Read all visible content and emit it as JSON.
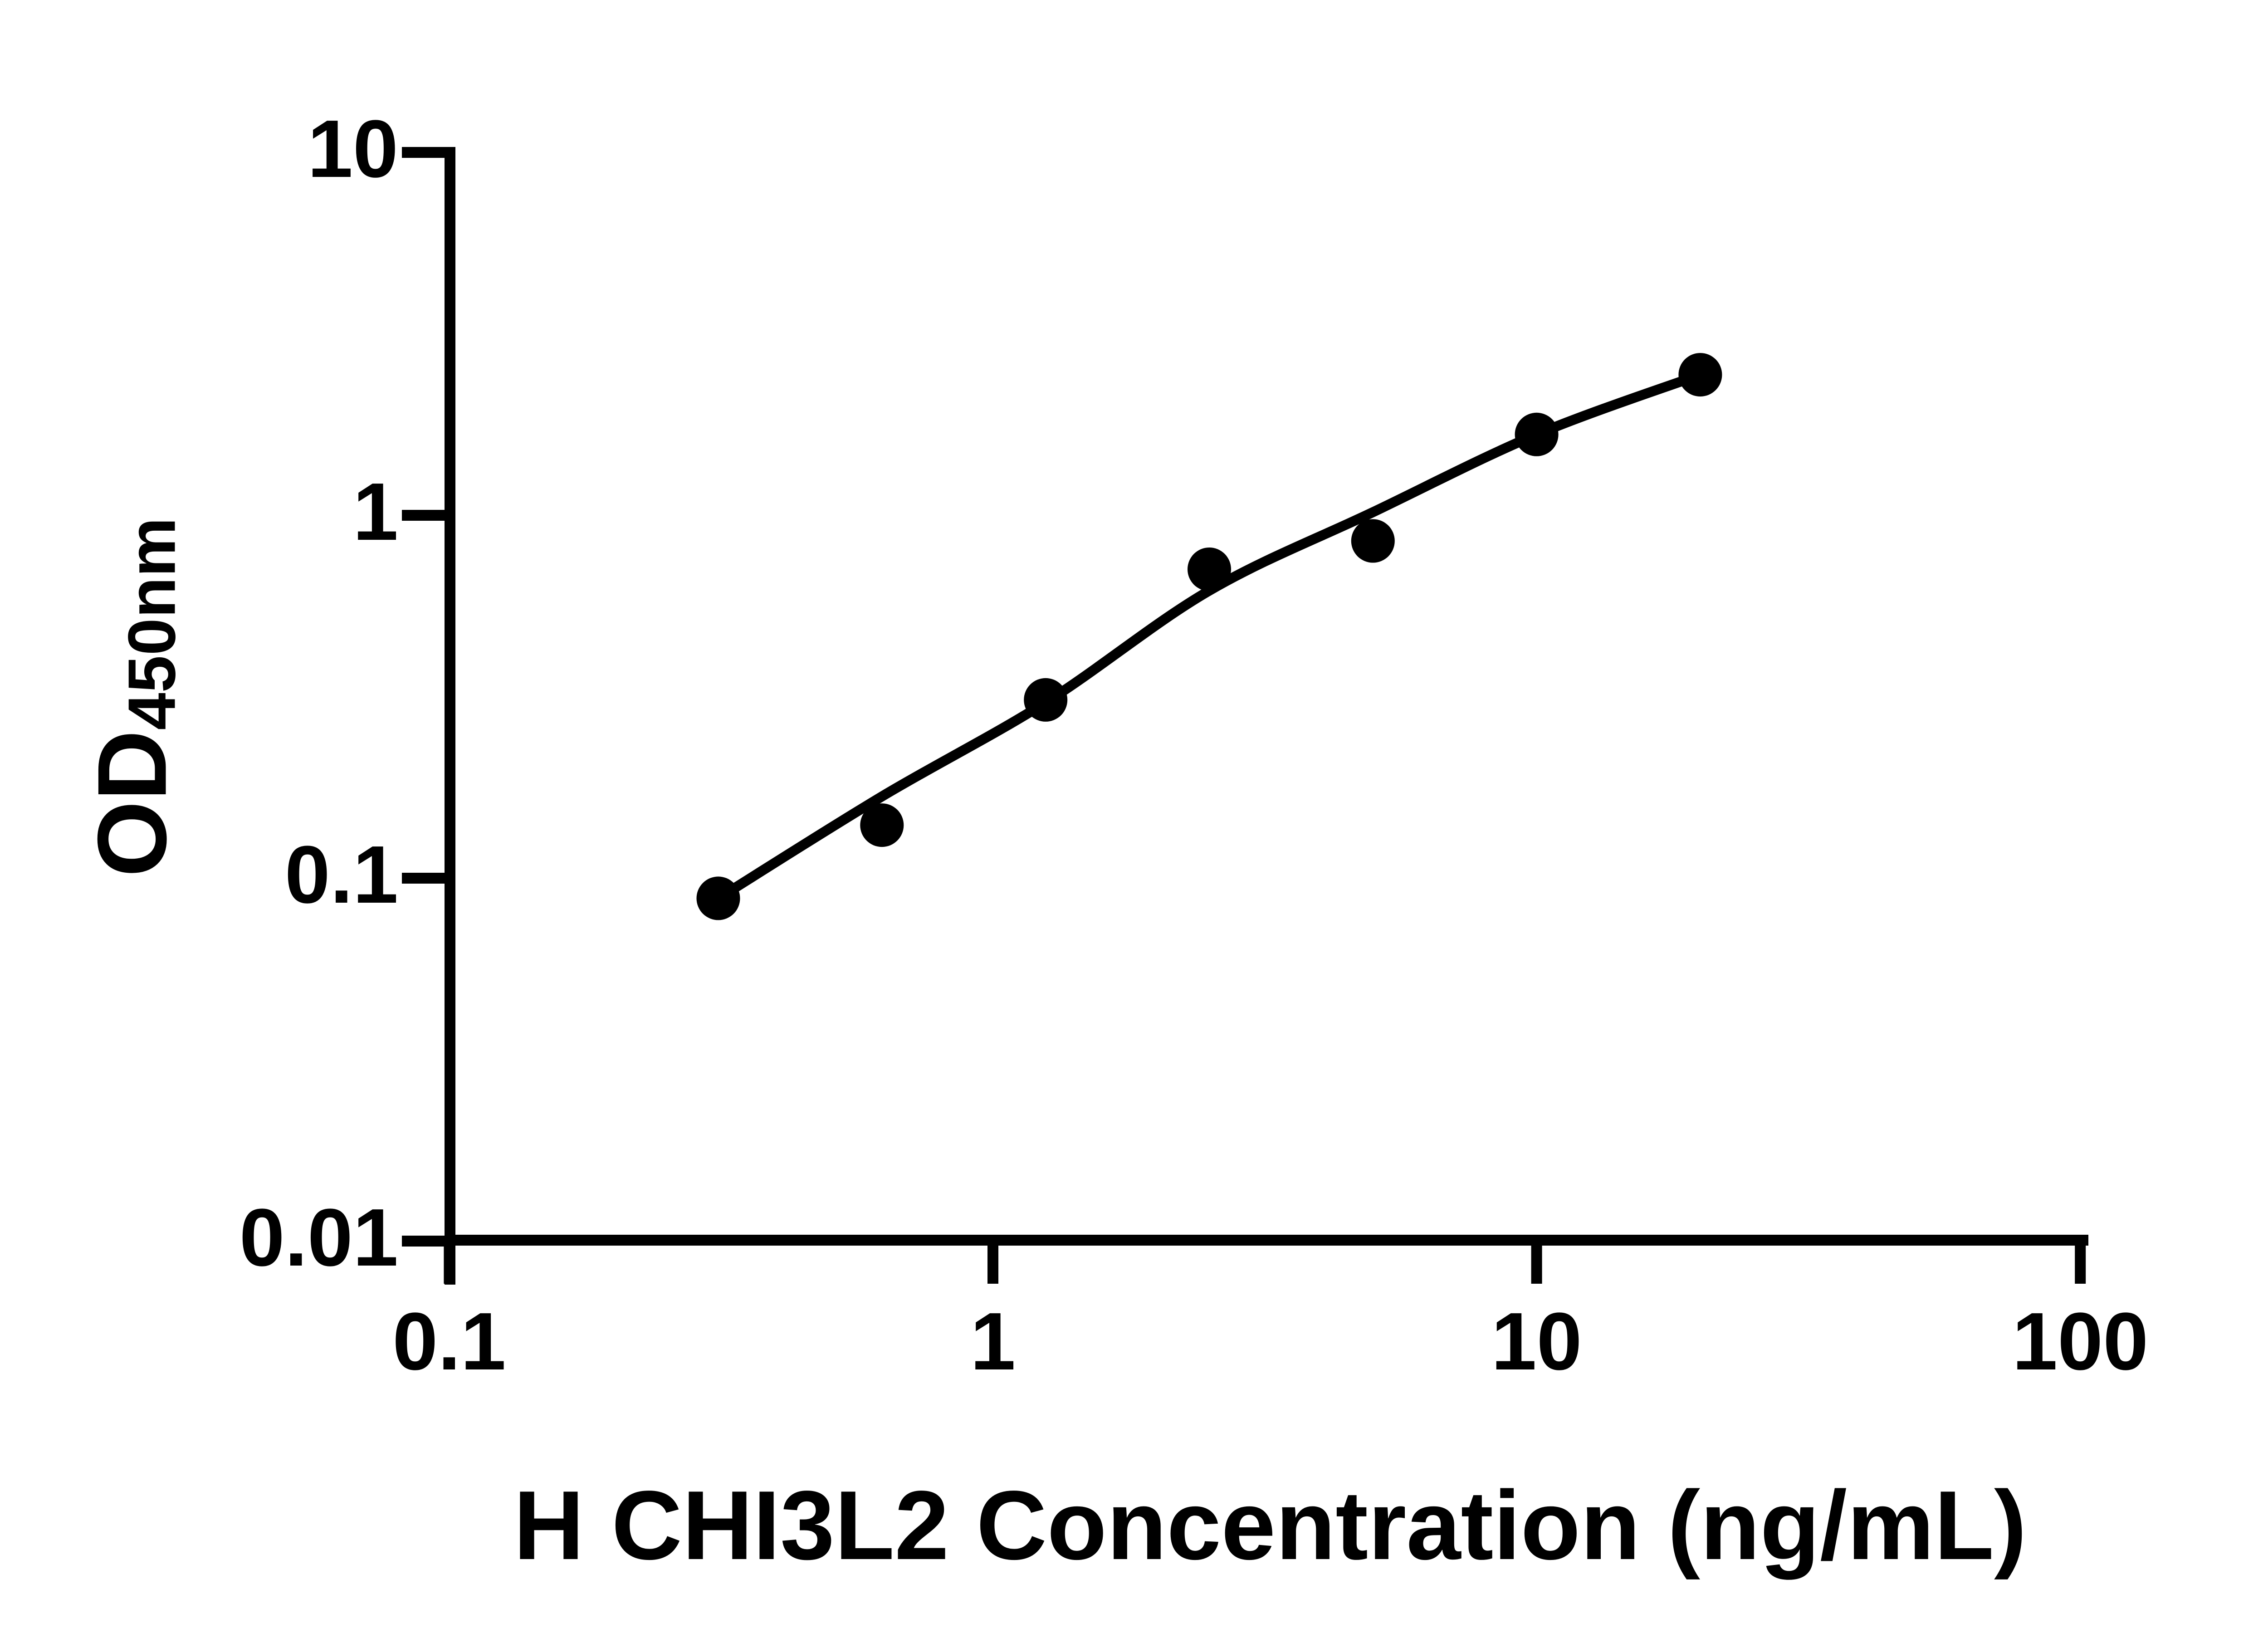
{
  "figure": {
    "background_color": "#ffffff",
    "ink_color": "#000000"
  },
  "chart_data": {
    "type": "scatter",
    "title": "",
    "xlabel": "H CHI3L2 Concentration (ng/mL)",
    "ylabel_main": "OD",
    "ylabel_sub": "450nm",
    "x_scale": "log",
    "y_scale": "log",
    "xlim": [
      0.1,
      100
    ],
    "ylim": [
      0.01,
      10
    ],
    "grid": false,
    "legend": "none",
    "marker": "filled-circle",
    "marker_color": "#000000",
    "curve_color": "#000000",
    "x_ticks": [
      {
        "value": 0.1,
        "label": "0.1"
      },
      {
        "value": 1,
        "label": "1"
      },
      {
        "value": 10,
        "label": "10"
      },
      {
        "value": 100,
        "label": "100"
      }
    ],
    "y_ticks": [
      {
        "value": 10,
        "label": "10"
      },
      {
        "value": 1,
        "label": "1"
      },
      {
        "value": 0.1,
        "label": "0.1"
      },
      {
        "value": 0.01,
        "label": "0.01"
      }
    ],
    "series": [
      {
        "name": "standard curve points",
        "points": [
          {
            "x": 0.3125,
            "y": 0.088
          },
          {
            "x": 0.625,
            "y": 0.14
          },
          {
            "x": 1.25,
            "y": 0.31
          },
          {
            "x": 2.5,
            "y": 0.71
          },
          {
            "x": 5,
            "y": 0.85
          },
          {
            "x": 10,
            "y": 1.67
          },
          {
            "x": 20,
            "y": 2.44
          }
        ]
      }
    ],
    "fit_curve": {
      "name": "fitted standard curve",
      "points": [
        {
          "x": 0.3125,
          "y": 0.088
        },
        {
          "x": 0.625,
          "y": 0.168
        },
        {
          "x": 1.25,
          "y": 0.305
        },
        {
          "x": 2.5,
          "y": 0.62
        },
        {
          "x": 5,
          "y": 1.02
        },
        {
          "x": 10,
          "y": 1.67
        },
        {
          "x": 20,
          "y": 2.44
        }
      ]
    }
  }
}
